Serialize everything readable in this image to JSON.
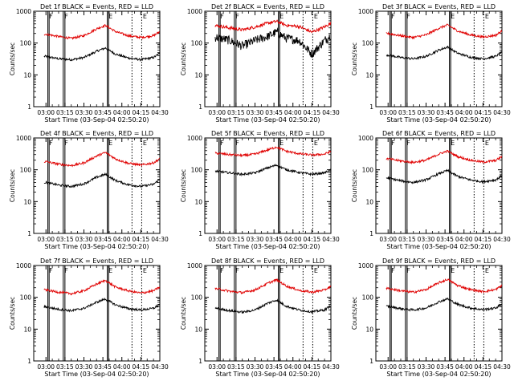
{
  "figure": {
    "panels": [
      {
        "title": "Det 1f BLACK = Events, RED = LLD"
      },
      {
        "title": "Det 2f BLACK = Events, RED = LLD"
      },
      {
        "title": "Det 3f BLACK = Events, RED = LLD"
      },
      {
        "title": "Det 4f BLACK = Events, RED = LLD"
      },
      {
        "title": "Det 5f BLACK = Events, RED = LLD"
      },
      {
        "title": "Det 6f BLACK = Events, RED = LLD"
      },
      {
        "title": "Det 7f BLACK = Events, RED = LLD"
      },
      {
        "title": "Det 8f BLACK = Events, RED = LLD"
      },
      {
        "title": "Det 9f BLACK = Events, RED = LLD"
      }
    ],
    "ylabel": "Counts/sec",
    "xlabel": "Start Time (03-Sep-04 02:50:20)",
    "xticks": [
      "03:00",
      "03:15",
      "03:30",
      "03:45",
      "04:00",
      "04:15",
      "04:30"
    ],
    "yticks": [
      "1",
      "10",
      "100",
      "1000"
    ],
    "flag_letters": [
      "F",
      "F",
      "E",
      "E"
    ],
    "colors": {
      "events": "#000000",
      "lld": "#e00000",
      "axes": "#000000"
    }
  },
  "chart_data": [
    {
      "type": "line",
      "title": "Det 1f BLACK = Events, RED = LLD",
      "yscale": "log",
      "ylim": [
        1,
        1000
      ],
      "xlim": [
        "02:50:20",
        "04:30"
      ],
      "series": [
        {
          "name": "Events",
          "x": [
            "03:00",
            "03:10",
            "03:20",
            "03:30",
            "03:40",
            "03:47",
            "03:55",
            "04:05",
            "04:15",
            "04:25",
            "04:30"
          ],
          "values": [
            38,
            32,
            30,
            35,
            55,
            70,
            45,
            34,
            30,
            35,
            48
          ]
        },
        {
          "name": "LLD",
          "x": [
            "03:00",
            "03:10",
            "03:20",
            "03:30",
            "03:40",
            "03:47",
            "03:55",
            "04:05",
            "04:15",
            "04:25",
            "04:30"
          ],
          "values": [
            190,
            160,
            140,
            170,
            280,
            360,
            230,
            170,
            150,
            170,
            230
          ]
        }
      ]
    },
    {
      "type": "line",
      "title": "Det 2f BLACK = Events, RED = LLD",
      "yscale": "log",
      "ylim": [
        1,
        1000
      ],
      "xlim": [
        "02:50:20",
        "04:30"
      ],
      "series": [
        {
          "name": "Events",
          "x": [
            "03:00",
            "03:10",
            "03:20",
            "03:30",
            "03:40",
            "03:47",
            "03:55",
            "04:05",
            "04:15",
            "04:25",
            "04:30"
          ],
          "values": [
            150,
            120,
            80,
            120,
            160,
            220,
            140,
            120,
            45,
            120,
            180
          ]
        },
        {
          "name": "LLD",
          "x": [
            "03:00",
            "03:10",
            "03:20",
            "03:30",
            "03:40",
            "03:47",
            "03:55",
            "04:05",
            "04:15",
            "04:25",
            "04:30"
          ],
          "values": [
            350,
            300,
            260,
            320,
            420,
            480,
            360,
            330,
            220,
            320,
            420
          ]
        }
      ]
    },
    {
      "type": "line",
      "title": "Det 3f BLACK = Events, RED = LLD",
      "yscale": "log",
      "ylim": [
        1,
        1000
      ],
      "xlim": [
        "02:50:20",
        "04:30"
      ],
      "series": [
        {
          "name": "Events",
          "x": [
            "03:00",
            "03:10",
            "03:20",
            "03:30",
            "03:40",
            "03:47",
            "03:55",
            "04:05",
            "04:15",
            "04:25",
            "04:30"
          ],
          "values": [
            42,
            35,
            32,
            38,
            60,
            75,
            48,
            36,
            32,
            38,
            52
          ]
        },
        {
          "name": "LLD",
          "x": [
            "03:00",
            "03:10",
            "03:20",
            "03:30",
            "03:40",
            "03:47",
            "03:55",
            "04:05",
            "04:15",
            "04:25",
            "04:30"
          ],
          "values": [
            200,
            170,
            150,
            180,
            290,
            370,
            240,
            180,
            155,
            175,
            240
          ]
        }
      ]
    },
    {
      "type": "line",
      "title": "Det 4f BLACK = Events, RED = LLD",
      "yscale": "log",
      "ylim": [
        1,
        1000
      ],
      "xlim": [
        "02:50:20",
        "04:30"
      ],
      "series": [
        {
          "name": "Events",
          "x": [
            "03:00",
            "03:10",
            "03:20",
            "03:30",
            "03:40",
            "03:47",
            "03:55",
            "04:05",
            "04:15",
            "04:25",
            "04:30"
          ],
          "values": [
            40,
            33,
            30,
            36,
            58,
            72,
            46,
            34,
            30,
            35,
            50
          ]
        },
        {
          "name": "LLD",
          "x": [
            "03:00",
            "03:10",
            "03:20",
            "03:30",
            "03:40",
            "03:47",
            "03:55",
            "04:05",
            "04:15",
            "04:25",
            "04:30"
          ],
          "values": [
            180,
            150,
            135,
            165,
            270,
            350,
            220,
            160,
            140,
            165,
            220
          ]
        }
      ]
    },
    {
      "type": "line",
      "title": "Det 5f BLACK = Events, RED = LLD",
      "yscale": "log",
      "ylim": [
        1,
        1000
      ],
      "xlim": [
        "02:50:20",
        "04:30"
      ],
      "series": [
        {
          "name": "Events",
          "x": [
            "03:00",
            "03:10",
            "03:20",
            "03:30",
            "03:40",
            "03:47",
            "03:55",
            "04:05",
            "04:15",
            "04:25",
            "04:30"
          ],
          "values": [
            90,
            80,
            72,
            80,
            115,
            140,
            100,
            82,
            72,
            80,
            100
          ]
        },
        {
          "name": "LLD",
          "x": [
            "03:00",
            "03:10",
            "03:20",
            "03:30",
            "03:40",
            "03:47",
            "03:55",
            "04:05",
            "04:15",
            "04:25",
            "04:30"
          ],
          "values": [
            330,
            300,
            280,
            310,
            420,
            520,
            380,
            320,
            290,
            310,
            380
          ]
        }
      ]
    },
    {
      "type": "line",
      "title": "Det 6f BLACK = Events, RED = LLD",
      "yscale": "log",
      "ylim": [
        1,
        1000
      ],
      "xlim": [
        "02:50:20",
        "04:30"
      ],
      "series": [
        {
          "name": "Events",
          "x": [
            "03:00",
            "03:10",
            "03:20",
            "03:30",
            "03:40",
            "03:47",
            "03:55",
            "04:05",
            "04:15",
            "04:25",
            "04:30"
          ],
          "values": [
            55,
            45,
            40,
            48,
            75,
            95,
            62,
            48,
            42,
            48,
            65
          ]
        },
        {
          "name": "LLD",
          "x": [
            "03:00",
            "03:10",
            "03:20",
            "03:30",
            "03:40",
            "03:47",
            "03:55",
            "04:05",
            "04:15",
            "04:25",
            "04:30"
          ],
          "values": [
            220,
            190,
            170,
            200,
            310,
            390,
            260,
            200,
            175,
            195,
            260
          ]
        }
      ]
    },
    {
      "type": "line",
      "title": "Det 7f BLACK = Events, RED = LLD",
      "yscale": "log",
      "ylim": [
        1,
        1000
      ],
      "xlim": [
        "02:50:20",
        "04:30"
      ],
      "series": [
        {
          "name": "Events",
          "x": [
            "03:00",
            "03:10",
            "03:20",
            "03:30",
            "03:40",
            "03:47",
            "03:55",
            "04:05",
            "04:15",
            "04:25",
            "04:30"
          ],
          "values": [
            50,
            42,
            38,
            45,
            70,
            88,
            58,
            44,
            40,
            45,
            60
          ]
        },
        {
          "name": "LLD",
          "x": [
            "03:00",
            "03:10",
            "03:20",
            "03:30",
            "03:40",
            "03:47",
            "03:55",
            "04:05",
            "04:15",
            "04:25",
            "04:30"
          ],
          "values": [
            170,
            145,
            130,
            160,
            260,
            340,
            210,
            160,
            135,
            160,
            210
          ]
        }
      ]
    },
    {
      "type": "line",
      "title": "Det 8f BLACK = Events, RED = LLD",
      "yscale": "log",
      "ylim": [
        1,
        1000
      ],
      "xlim": [
        "02:50:20",
        "04:30"
      ],
      "series": [
        {
          "name": "Events",
          "x": [
            "03:00",
            "03:10",
            "03:20",
            "03:30",
            "03:40",
            "03:47",
            "03:55",
            "04:05",
            "04:15",
            "04:25",
            "04:30"
          ],
          "values": [
            45,
            38,
            34,
            40,
            65,
            82,
            52,
            40,
            35,
            40,
            55
          ]
        },
        {
          "name": "LLD",
          "x": [
            "03:00",
            "03:10",
            "03:20",
            "03:30",
            "03:40",
            "03:47",
            "03:55",
            "04:05",
            "04:15",
            "04:25",
            "04:30"
          ],
          "values": [
            185,
            155,
            140,
            170,
            275,
            355,
            225,
            165,
            145,
            170,
            225
          ]
        }
      ]
    },
    {
      "type": "line",
      "title": "Det 9f BLACK = Events, RED = LLD",
      "yscale": "log",
      "ylim": [
        1,
        1000
      ],
      "xlim": [
        "02:50:20",
        "04:30"
      ],
      "series": [
        {
          "name": "Events",
          "x": [
            "03:00",
            "03:10",
            "03:20",
            "03:30",
            "03:40",
            "03:47",
            "03:55",
            "04:05",
            "04:15",
            "04:25",
            "04:30"
          ],
          "values": [
            52,
            44,
            40,
            46,
            72,
            90,
            60,
            46,
            41,
            46,
            62
          ]
        },
        {
          "name": "LLD",
          "x": [
            "03:00",
            "03:10",
            "03:20",
            "03:30",
            "03:40",
            "03:47",
            "03:55",
            "04:05",
            "04:15",
            "04:25",
            "04:30"
          ],
          "values": [
            190,
            160,
            145,
            175,
            285,
            365,
            235,
            175,
            150,
            175,
            235
          ]
        }
      ]
    }
  ]
}
